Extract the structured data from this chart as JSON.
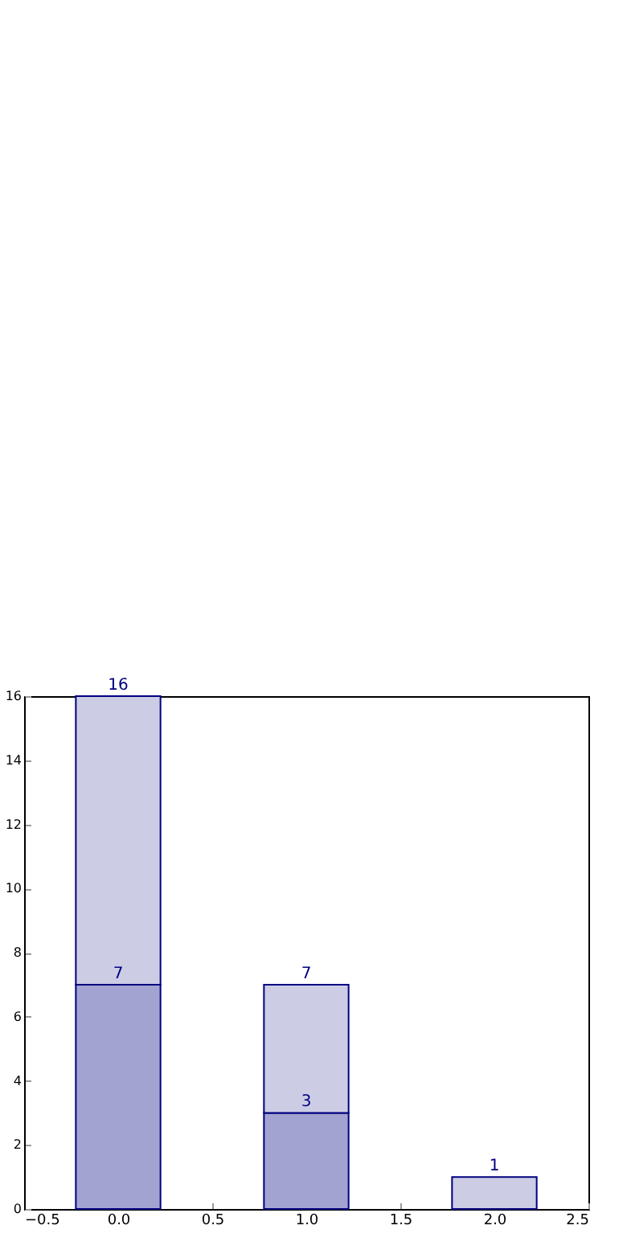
{
  "chart_data": {
    "type": "bar",
    "x": [
      0,
      1,
      2
    ],
    "stacked": true,
    "series": [
      {
        "color": "#a3a3d1",
        "values": [
          7,
          3,
          null
        ],
        "value_labels": [
          "7",
          "3",
          null
        ]
      },
      {
        "color": "#cccce5",
        "values": [
          9,
          4,
          1
        ]
      }
    ],
    "totals": [
      "16",
      "7",
      "1"
    ],
    "xlim": [
      -0.5,
      2.5
    ],
    "xticks": [
      {
        "value": -0.5,
        "label": "−0.5"
      },
      {
        "value": 0,
        "label": "0.0"
      },
      {
        "value": 0.5,
        "label": "0.5"
      },
      {
        "value": 1,
        "label": "1.0"
      },
      {
        "value": 1.5,
        "label": "1.5"
      },
      {
        "value": 2,
        "label": "2.0"
      },
      {
        "value": 2.5,
        "label": "2.5"
      }
    ],
    "ylim": [
      0,
      16
    ],
    "yticks": [
      0,
      2,
      4,
      6,
      8,
      10,
      12,
      14,
      16
    ],
    "grid": false
  }
}
